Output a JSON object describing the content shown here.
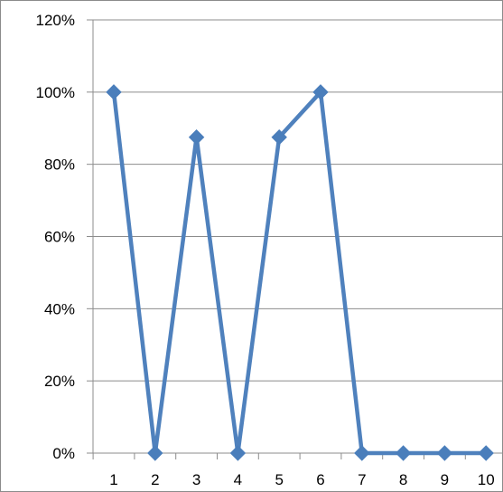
{
  "chart_data": {
    "type": "line",
    "categories": [
      "1",
      "2",
      "3",
      "4",
      "5",
      "6",
      "7",
      "8",
      "9",
      "10"
    ],
    "series": [
      {
        "values": [
          100,
          0,
          87.5,
          0,
          87.5,
          100,
          0,
          0,
          0,
          0
        ]
      }
    ],
    "ylim": [
      0,
      120
    ],
    "yticks": [
      0,
      20,
      40,
      60,
      80,
      100,
      120
    ],
    "ytick_labels": [
      "0%",
      "20%",
      "40%",
      "60%",
      "80%",
      "100%",
      "120%"
    ],
    "grid": true,
    "legend": "none",
    "colors": {
      "series": "#4f81bd",
      "marker": "#4a7ebb",
      "grid": "#8c8c8c",
      "axis": "#8c8c8c",
      "frame": "#8c8c8c"
    }
  }
}
